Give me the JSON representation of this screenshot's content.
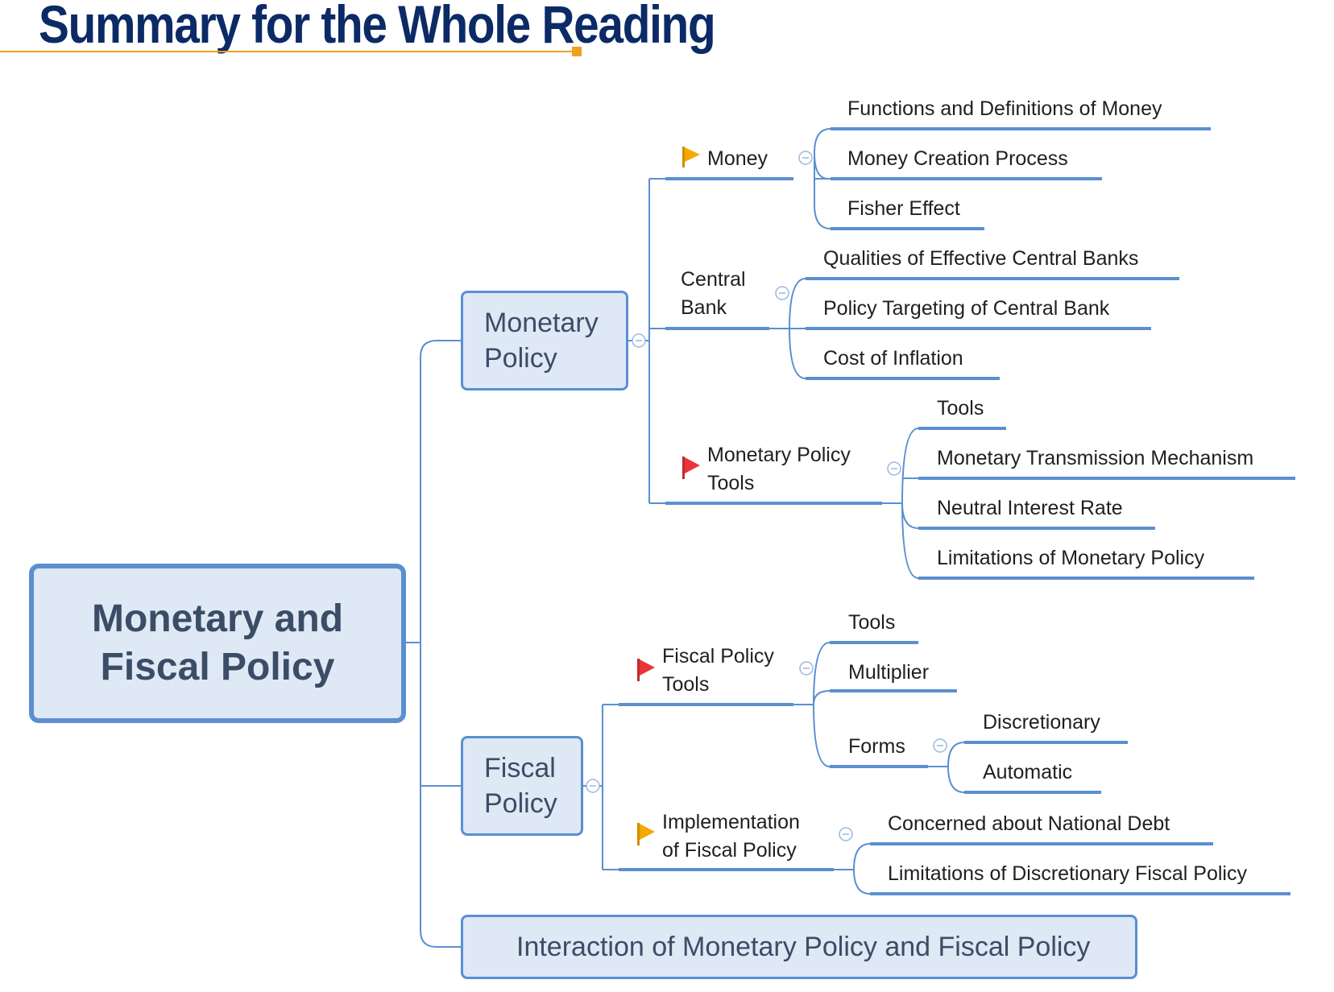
{
  "title": "Summary for the Whole Reading",
  "colors": {
    "title": "#0b2a66",
    "title_rule": "#f0a020",
    "node_fill": "#dfe8f5",
    "node_border": "#5b8fd0",
    "connector": "#5b8fd0",
    "flag_orange": "#f5a800",
    "flag_red": "#e8353a"
  },
  "root": {
    "line1": "Monetary and",
    "line2": "Fiscal Policy"
  },
  "monetary_policy": {
    "line1": "Monetary",
    "line2": "Policy",
    "money": {
      "label": "Money",
      "flag": "orange-flag-icon",
      "items": [
        "Functions and Definitions of Money",
        "Money Creation Process",
        "Fisher Effect"
      ]
    },
    "central_bank": {
      "line1": "Central",
      "line2": "Bank",
      "items": [
        "Qualities of Effective Central Banks",
        "Policy Targeting of Central Bank",
        "Cost of Inflation"
      ]
    },
    "tools": {
      "line1": "Monetary Policy",
      "line2": "Tools",
      "flag": "red-flag-icon",
      "items": [
        "Tools",
        "Monetary Transmission Mechanism",
        "Neutral Interest Rate",
        "Limitations of Monetary Policy"
      ]
    }
  },
  "fiscal_policy": {
    "line1": "Fiscal",
    "line2": "Policy",
    "tools": {
      "line1": "Fiscal Policy",
      "line2": "Tools",
      "flag": "red-flag-icon",
      "items": [
        "Tools",
        "Multiplier"
      ],
      "forms": {
        "label": "Forms",
        "items": [
          "Discretionary",
          "Automatic"
        ]
      }
    },
    "implementation": {
      "line1": "Implementation",
      "line2": "of Fiscal Policy",
      "flag": "orange-flag-icon",
      "items": [
        "Concerned about National Debt",
        "Limitations of Discretionary Fiscal Policy"
      ]
    }
  },
  "interaction": {
    "label": "Interaction of Monetary Policy and Fiscal Policy",
    "flag": "orange-flag-icon"
  }
}
